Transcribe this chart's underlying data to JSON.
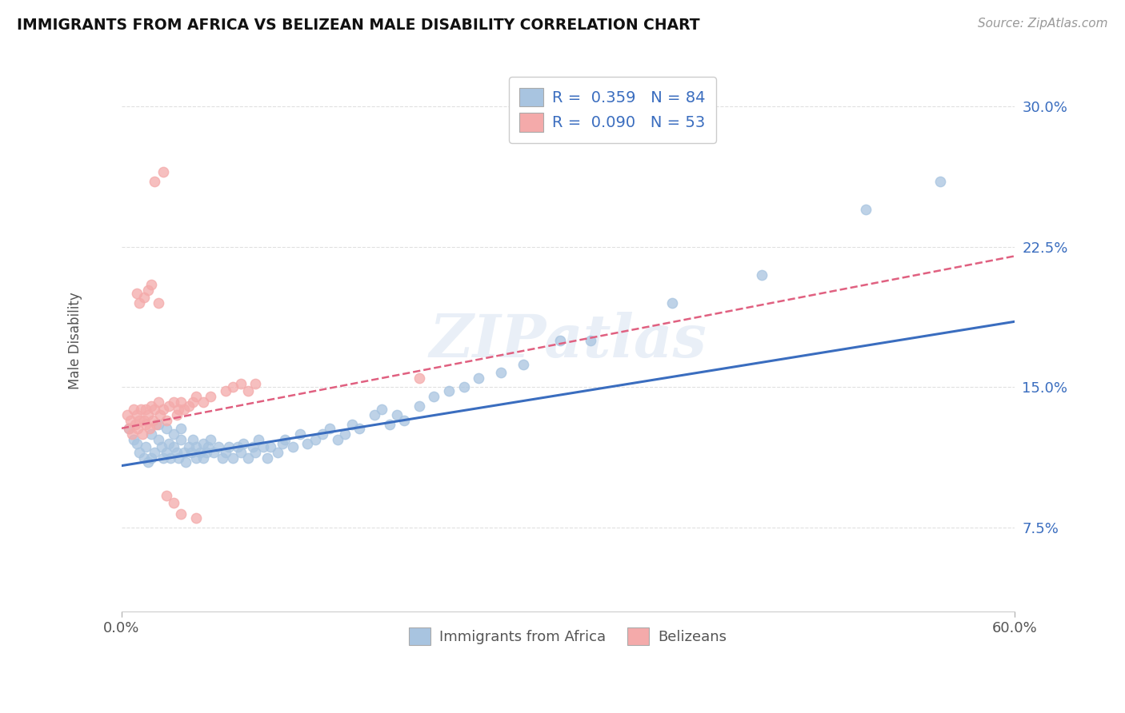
{
  "title": "IMMIGRANTS FROM AFRICA VS BELIZEAN MALE DISABILITY CORRELATION CHART",
  "source": "Source: ZipAtlas.com",
  "ylabel": "Male Disability",
  "legend_labels": [
    "Immigrants from Africa",
    "Belizeans"
  ],
  "legend_r1": "R =  0.359",
  "legend_n1": "N = 84",
  "legend_r2": "R =  0.090",
  "legend_n2": "N = 53",
  "xlim": [
    0.0,
    0.6
  ],
  "ylim": [
    0.03,
    0.32
  ],
  "yticks": [
    0.075,
    0.15,
    0.225,
    0.3
  ],
  "ytick_labels": [
    "7.5%",
    "15.0%",
    "22.5%",
    "30.0%"
  ],
  "xticks": [
    0.0,
    0.6
  ],
  "xtick_labels": [
    "0.0%",
    "60.0%"
  ],
  "blue_color": "#A8C4E0",
  "pink_color": "#F4AAAA",
  "blue_line_color": "#3A6DBF",
  "pink_line_color": "#E06080",
  "grid_color": "#DDDDDD",
  "background_color": "#FFFFFF",
  "watermark": "ZIPatlas",
  "blue_scatter_x": [
    0.005,
    0.008,
    0.01,
    0.012,
    0.015,
    0.016,
    0.018,
    0.02,
    0.02,
    0.022,
    0.025,
    0.025,
    0.027,
    0.028,
    0.03,
    0.03,
    0.032,
    0.033,
    0.035,
    0.035,
    0.037,
    0.038,
    0.04,
    0.04,
    0.042,
    0.043,
    0.045,
    0.047,
    0.048,
    0.05,
    0.05,
    0.053,
    0.055,
    0.055,
    0.057,
    0.058,
    0.06,
    0.062,
    0.065,
    0.068,
    0.07,
    0.072,
    0.075,
    0.078,
    0.08,
    0.082,
    0.085,
    0.088,
    0.09,
    0.092,
    0.095,
    0.098,
    0.1,
    0.105,
    0.108,
    0.11,
    0.115,
    0.12,
    0.125,
    0.13,
    0.135,
    0.14,
    0.145,
    0.15,
    0.155,
    0.16,
    0.17,
    0.175,
    0.18,
    0.185,
    0.19,
    0.2,
    0.21,
    0.22,
    0.23,
    0.24,
    0.255,
    0.27,
    0.295,
    0.315,
    0.37,
    0.43,
    0.5,
    0.55
  ],
  "blue_scatter_y": [
    0.128,
    0.122,
    0.12,
    0.115,
    0.112,
    0.118,
    0.11,
    0.125,
    0.112,
    0.115,
    0.122,
    0.13,
    0.118,
    0.112,
    0.128,
    0.115,
    0.12,
    0.112,
    0.118,
    0.125,
    0.115,
    0.112,
    0.122,
    0.128,
    0.115,
    0.11,
    0.118,
    0.115,
    0.122,
    0.118,
    0.112,
    0.115,
    0.12,
    0.112,
    0.115,
    0.118,
    0.122,
    0.115,
    0.118,
    0.112,
    0.115,
    0.118,
    0.112,
    0.118,
    0.115,
    0.12,
    0.112,
    0.118,
    0.115,
    0.122,
    0.118,
    0.112,
    0.118,
    0.115,
    0.12,
    0.122,
    0.118,
    0.125,
    0.12,
    0.122,
    0.125,
    0.128,
    0.122,
    0.125,
    0.13,
    0.128,
    0.135,
    0.138,
    0.13,
    0.135,
    0.132,
    0.14,
    0.145,
    0.148,
    0.15,
    0.155,
    0.158,
    0.162,
    0.175,
    0.175,
    0.195,
    0.21,
    0.245,
    0.26
  ],
  "pink_scatter_x": [
    0.004,
    0.005,
    0.006,
    0.007,
    0.008,
    0.009,
    0.01,
    0.011,
    0.012,
    0.013,
    0.014,
    0.015,
    0.016,
    0.016,
    0.018,
    0.019,
    0.02,
    0.021,
    0.022,
    0.023,
    0.025,
    0.026,
    0.028,
    0.03,
    0.032,
    0.035,
    0.037,
    0.038,
    0.04,
    0.042,
    0.045,
    0.048,
    0.05,
    0.055,
    0.06,
    0.07,
    0.075,
    0.08,
    0.085,
    0.09,
    0.01,
    0.012,
    0.015,
    0.018,
    0.02,
    0.025,
    0.03,
    0.035,
    0.04,
    0.05,
    0.022,
    0.028,
    0.2
  ],
  "pink_scatter_y": [
    0.135,
    0.128,
    0.132,
    0.125,
    0.138,
    0.13,
    0.135,
    0.128,
    0.132,
    0.138,
    0.125,
    0.132,
    0.13,
    0.138,
    0.135,
    0.128,
    0.14,
    0.132,
    0.138,
    0.13,
    0.142,
    0.135,
    0.138,
    0.132,
    0.14,
    0.142,
    0.135,
    0.138,
    0.142,
    0.138,
    0.14,
    0.142,
    0.145,
    0.142,
    0.145,
    0.148,
    0.15,
    0.152,
    0.148,
    0.152,
    0.2,
    0.195,
    0.198,
    0.202,
    0.205,
    0.195,
    0.092,
    0.088,
    0.082,
    0.08,
    0.26,
    0.265,
    0.155
  ],
  "blue_line_x0": 0.0,
  "blue_line_x1": 0.6,
  "blue_line_y0": 0.108,
  "blue_line_y1": 0.185,
  "pink_line_x0": 0.0,
  "pink_line_x1": 0.6,
  "pink_line_y0": 0.128,
  "pink_line_y1": 0.22
}
